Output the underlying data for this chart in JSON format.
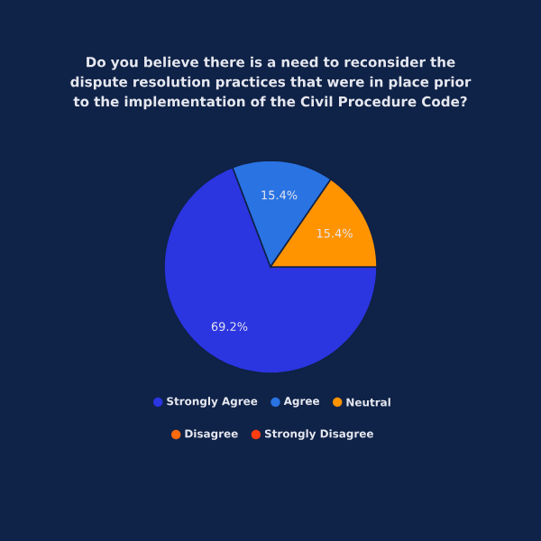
{
  "chart_data": {
    "type": "pie",
    "title": "Do you believe there is a need to reconsider the dispute resolution practices that were in place prior to the implementation of the Civil Procedure Code?",
    "categories": [
      "Strongly Agree",
      "Agree",
      "Neutral",
      "Disagree",
      "Strongly  Disagree"
    ],
    "values": [
      69.2,
      15.4,
      15.4,
      0,
      0
    ],
    "colors": [
      "#2b35e0",
      "#2a73e3",
      "#ff9300",
      "#ff6a0a",
      "#ff3d10"
    ],
    "value_labels": [
      "69.2%",
      "15.4%",
      "15.4%",
      null,
      null
    ],
    "legend": "bottom"
  }
}
